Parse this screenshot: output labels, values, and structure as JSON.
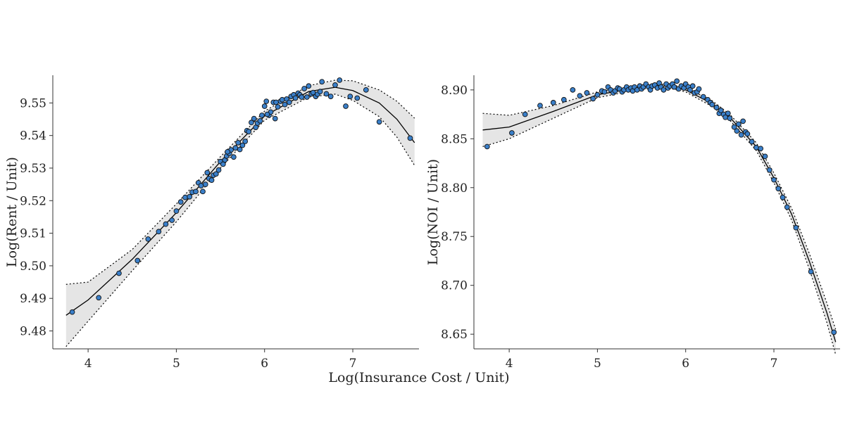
{
  "figure": {
    "shared_xlabel": "Log(Insurance Cost / Unit)"
  },
  "chart_data": [
    {
      "type": "scatter",
      "title": "",
      "xlabel": "",
      "ylabel": "Log(Rent / Unit)",
      "xlim": [
        3.6,
        7.75
      ],
      "ylim": [
        9.4745,
        9.5585
      ],
      "xticks": [
        4,
        5,
        6,
        7
      ],
      "yticks": [
        9.48,
        9.49,
        9.5,
        9.51,
        9.52,
        9.53,
        9.54,
        9.55
      ],
      "tick_decimals": 2,
      "grid": false,
      "legend": "none",
      "colors": {
        "point_fill": "#3a7fc9",
        "point_edge": "#111111",
        "fit_line": "#000000",
        "band_fill": "#e5e5e5",
        "band_edge": "#000000"
      },
      "fit": {
        "x": [
          3.75,
          4.0,
          4.5,
          5.0,
          5.5,
          6.0,
          6.5,
          6.8,
          7.0,
          7.3,
          7.5,
          7.7
        ],
        "y": [
          9.4848,
          9.4895,
          9.502,
          9.5163,
          9.532,
          9.546,
          9.5535,
          9.5548,
          9.5538,
          9.55,
          9.545,
          9.5378
        ]
      },
      "band": {
        "x": [
          3.75,
          4.0,
          4.5,
          5.0,
          5.5,
          6.0,
          6.5,
          6.8,
          7.0,
          7.3,
          7.5,
          7.7
        ],
        "upper": [
          9.4943,
          9.495,
          9.505,
          9.519,
          9.5335,
          9.5475,
          9.5553,
          9.557,
          9.5568,
          9.554,
          9.5505,
          9.5453
        ],
        "lower": [
          9.4752,
          9.483,
          9.4985,
          9.5135,
          9.53,
          9.5447,
          9.5518,
          9.5527,
          9.5508,
          9.5458,
          9.5395,
          9.5308
        ]
      },
      "points": {
        "x": [
          3.82,
          4.12,
          4.35,
          4.56,
          4.68,
          4.8,
          4.88,
          4.95,
          5.0,
          5.05,
          5.1,
          5.15,
          5.18,
          5.22,
          5.25,
          5.28,
          5.3,
          5.33,
          5.35,
          5.37,
          5.4,
          5.42,
          5.45,
          5.48,
          5.5,
          5.53,
          5.55,
          5.57,
          5.6,
          5.62,
          5.65,
          5.67,
          5.7,
          5.72,
          5.75,
          5.78,
          5.8,
          5.82,
          5.85,
          5.88,
          5.9,
          5.92,
          5.95,
          5.97,
          6.0,
          6.02,
          6.05,
          6.07,
          6.1,
          6.12,
          6.15,
          6.18,
          6.2,
          6.23,
          6.25,
          6.28,
          6.3,
          6.33,
          6.35,
          6.38,
          6.4,
          6.42,
          6.45,
          6.48,
          6.5,
          6.53,
          6.55,
          6.58,
          6.6,
          6.63,
          6.65,
          6.7,
          6.75,
          6.8,
          6.85,
          6.92,
          6.97,
          7.05,
          7.15,
          7.3,
          7.65,
          6.03,
          5.58,
          6.13
        ],
        "y": [
          9.4858,
          9.4902,
          9.4977,
          9.5016,
          9.5082,
          9.5105,
          9.5128,
          9.514,
          9.5168,
          9.5196,
          9.521,
          9.5212,
          9.5226,
          9.5228,
          9.5255,
          9.5246,
          9.5228,
          9.525,
          9.5286,
          9.5268,
          9.5263,
          9.5278,
          9.5282,
          9.5294,
          9.532,
          9.5312,
          9.5325,
          9.5337,
          9.5345,
          9.5356,
          9.5334,
          9.5362,
          9.5378,
          9.5357,
          9.537,
          9.5382,
          9.5415,
          9.5412,
          9.544,
          9.5452,
          9.5425,
          9.5438,
          9.5445,
          9.5462,
          9.549,
          9.5505,
          9.5462,
          9.5472,
          9.5502,
          9.5452,
          9.5488,
          9.5505,
          9.551,
          9.5495,
          9.5512,
          9.5502,
          9.552,
          9.5525,
          9.5515,
          9.553,
          9.5525,
          9.5518,
          9.5544,
          9.5518,
          9.5552,
          9.5528,
          9.5532,
          9.552,
          9.5527,
          9.5535,
          9.5565,
          9.5528,
          9.552,
          9.5555,
          9.557,
          9.549,
          9.552,
          9.5515,
          9.554,
          9.5442,
          9.5392,
          9.5465,
          9.535,
          9.5502
        ]
      }
    },
    {
      "type": "scatter",
      "title": "",
      "xlabel": "",
      "ylabel": "Log(NOI / Unit)",
      "xlim": [
        3.6,
        7.75
      ],
      "ylim": [
        8.635,
        8.915
      ],
      "xticks": [
        4,
        5,
        6,
        7
      ],
      "yticks": [
        8.65,
        8.7,
        8.75,
        8.8,
        8.85,
        8.9
      ],
      "tick_decimals": 2,
      "grid": false,
      "legend": "none",
      "colors": {
        "point_fill": "#3a7fc9",
        "point_edge": "#111111",
        "fit_line": "#000000",
        "band_fill": "#e5e5e5",
        "band_edge": "#000000"
      },
      "fit": {
        "x": [
          3.7,
          4.0,
          4.5,
          5.0,
          5.5,
          5.8,
          6.0,
          6.3,
          6.5,
          6.8,
          7.0,
          7.2,
          7.4,
          7.6,
          7.7
        ],
        "y": [
          8.859,
          8.862,
          8.878,
          8.895,
          8.903,
          8.904,
          8.9,
          8.886,
          8.872,
          8.842,
          8.81,
          8.773,
          8.725,
          8.672,
          8.642
        ]
      },
      "band": {
        "x": [
          3.7,
          4.0,
          4.5,
          5.0,
          5.5,
          5.8,
          6.0,
          6.3,
          6.5,
          6.8,
          7.0,
          7.2,
          7.4,
          7.6,
          7.7
        ],
        "upper": [
          8.876,
          8.874,
          8.884,
          8.898,
          8.905,
          8.906,
          8.902,
          8.889,
          8.875,
          8.846,
          8.815,
          8.779,
          8.733,
          8.682,
          8.655
        ],
        "lower": [
          8.842,
          8.85,
          8.871,
          8.892,
          8.901,
          8.902,
          8.898,
          8.883,
          8.869,
          8.838,
          8.805,
          8.767,
          8.717,
          8.662,
          8.629
        ]
      },
      "points": {
        "x": [
          3.75,
          4.03,
          4.18,
          4.35,
          4.5,
          4.62,
          4.72,
          4.8,
          4.88,
          4.95,
          5.0,
          5.05,
          5.08,
          5.12,
          5.15,
          5.18,
          5.2,
          5.23,
          5.25,
          5.28,
          5.3,
          5.33,
          5.35,
          5.38,
          5.4,
          5.42,
          5.45,
          5.48,
          5.5,
          5.52,
          5.55,
          5.58,
          5.6,
          5.62,
          5.65,
          5.68,
          5.7,
          5.72,
          5.75,
          5.78,
          5.8,
          5.82,
          5.85,
          5.87,
          5.9,
          5.92,
          5.95,
          5.98,
          6.0,
          6.03,
          6.05,
          6.08,
          6.1,
          6.13,
          6.15,
          6.2,
          6.25,
          6.28,
          6.3,
          6.35,
          6.38,
          6.4,
          6.43,
          6.45,
          6.48,
          6.5,
          6.55,
          6.58,
          6.6,
          6.63,
          6.65,
          6.68,
          6.7,
          6.75,
          6.8,
          6.85,
          6.9,
          6.95,
          7.0,
          7.05,
          7.1,
          7.15,
          7.25,
          7.42,
          7.68
        ],
        "y": [
          8.842,
          8.856,
          8.875,
          8.884,
          8.887,
          8.89,
          8.9,
          8.894,
          8.897,
          8.891,
          8.895,
          8.899,
          8.898,
          8.903,
          8.9,
          8.897,
          8.899,
          8.902,
          8.901,
          8.898,
          8.9,
          8.903,
          8.9,
          8.902,
          8.899,
          8.903,
          8.9,
          8.904,
          8.901,
          8.903,
          8.906,
          8.903,
          8.9,
          8.904,
          8.905,
          8.902,
          8.907,
          8.903,
          8.9,
          8.906,
          8.902,
          8.904,
          8.906,
          8.903,
          8.909,
          8.901,
          8.904,
          8.902,
          8.906,
          8.903,
          8.9,
          8.904,
          8.897,
          8.898,
          8.901,
          8.893,
          8.89,
          8.887,
          8.885,
          8.882,
          8.876,
          8.879,
          8.875,
          8.872,
          8.876,
          8.871,
          8.862,
          8.858,
          8.865,
          8.854,
          8.868,
          8.857,
          8.855,
          8.847,
          8.841,
          8.84,
          8.832,
          8.818,
          8.808,
          8.799,
          8.79,
          8.78,
          8.759,
          8.714,
          8.652
        ]
      }
    }
  ]
}
